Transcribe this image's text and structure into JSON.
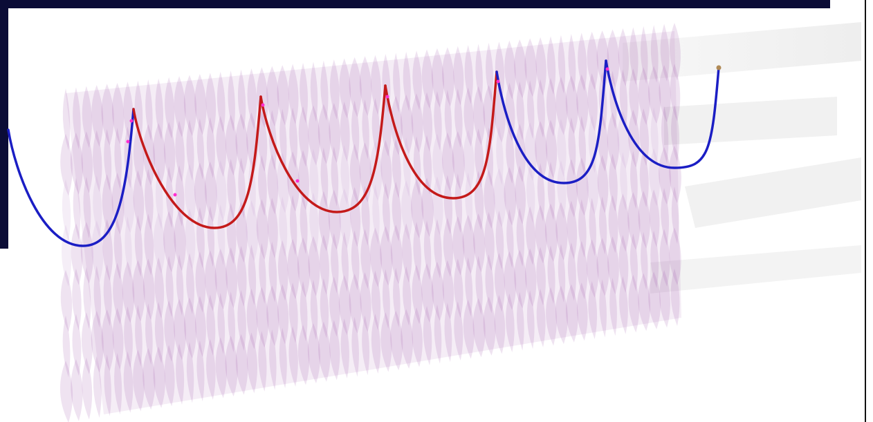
{
  "scene": {
    "subject": "helical-trajectory-visualization",
    "colors": {
      "background": "#ffffff",
      "panel_dark": "#0b0c36",
      "frame_border": "#111111",
      "membrane": "#9c4ea6",
      "membrane_light": "#c8a1d1",
      "helix_primary": "#1b1ec4",
      "helix_secondary": "#c41a1a",
      "helix_highlight": "#ff2fd0",
      "end_marker": "#b08a55",
      "floor_shade": "#ededed"
    },
    "helix": {
      "loops_visible": 5,
      "segment_colors": [
        "blue",
        "red",
        "red",
        "red",
        "blue",
        "blue"
      ]
    }
  }
}
